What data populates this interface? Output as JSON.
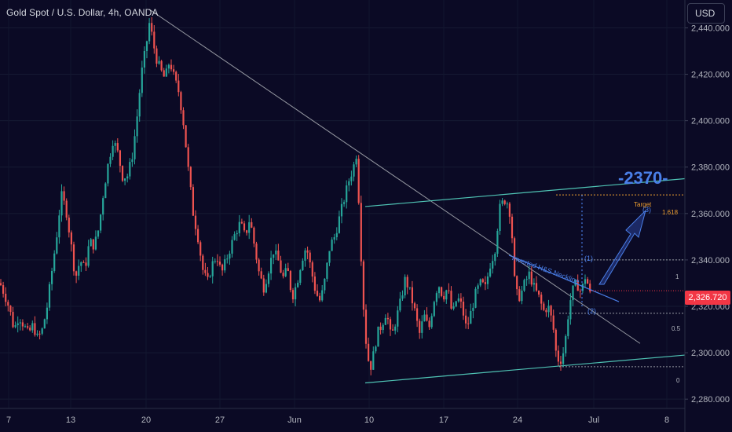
{
  "header": {
    "title": "Gold Spot / U.S. Dollar, 4h, OANDA",
    "currency": "USD"
  },
  "annotations": {
    "target_big": "-2370-",
    "target_label": "Target",
    "fib_1618": "1.618",
    "fib_1": "1",
    "fib_05": "0.5",
    "fib_0": "0",
    "wave1": "(1)",
    "wave2": "(2)",
    "wave3": "(3)",
    "neckline": "Inverted H&S Neckline"
  },
  "colors": {
    "background": "#0b0a25",
    "up": "#26a69a",
    "down": "#ef5350",
    "channel": "#4fc3b4",
    "trendline": "#9598a1",
    "annotation_blue": "#4a7fe8",
    "current_price": "#f23645",
    "target_orange": "#f0a030"
  },
  "chart_data": {
    "type": "candlestick",
    "title": "Gold Spot / U.S. Dollar, 4h, OANDA",
    "currency": "USD",
    "ylim": [
      2276,
      2452
    ],
    "y_ticks": [
      "2,440.000",
      "2,420.000",
      "2,400.000",
      "2,380.000",
      "2,360.000",
      "2,340.000",
      "2,320.000",
      "2,300.000",
      "2,280.000"
    ],
    "y_tick_values": [
      2440,
      2420,
      2400,
      2380,
      2360,
      2340,
      2320,
      2300,
      2280
    ],
    "x_ticks": [
      "7",
      "13",
      "20",
      "27",
      "Jun",
      "10",
      "17",
      "24",
      "Jul",
      "8"
    ],
    "current_price": "2,326.720",
    "current_value": 2326.72,
    "target": 2370,
    "price_path": [
      [
        0,
        2330
      ],
      [
        6,
        2325
      ],
      [
        12,
        2319
      ],
      [
        18,
        2310
      ],
      [
        24,
        2316
      ],
      [
        30,
        2312
      ],
      [
        36,
        2308
      ],
      [
        42,
        2312
      ],
      [
        48,
        2306
      ],
      [
        54,
        2310
      ],
      [
        60,
        2320
      ],
      [
        66,
        2335
      ],
      [
        72,
        2350
      ],
      [
        78,
        2368
      ],
      [
        84,
        2362
      ],
      [
        90,
        2348
      ],
      [
        96,
        2332
      ],
      [
        102,
        2340
      ],
      [
        108,
        2336
      ],
      [
        114,
        2348
      ],
      [
        120,
        2346
      ],
      [
        126,
        2354
      ],
      [
        132,
        2370
      ],
      [
        138,
        2382
      ],
      [
        144,
        2392
      ],
      [
        150,
        2386
      ],
      [
        156,
        2376
      ],
      [
        162,
        2376
      ],
      [
        168,
        2384
      ],
      [
        174,
        2400
      ],
      [
        180,
        2420
      ],
      [
        186,
        2432
      ],
      [
        190,
        2442
      ],
      [
        194,
        2436
      ],
      [
        198,
        2428
      ],
      [
        204,
        2422
      ],
      [
        210,
        2418
      ],
      [
        216,
        2426
      ],
      [
        222,
        2418
      ],
      [
        228,
        2412
      ],
      [
        234,
        2398
      ],
      [
        240,
        2378
      ],
      [
        246,
        2360
      ],
      [
        252,
        2350
      ],
      [
        258,
        2336
      ],
      [
        264,
        2330
      ],
      [
        270,
        2338
      ],
      [
        276,
        2342
      ],
      [
        282,
        2334
      ],
      [
        288,
        2340
      ],
      [
        294,
        2346
      ],
      [
        300,
        2352
      ],
      [
        306,
        2356
      ],
      [
        312,
        2350
      ],
      [
        318,
        2358
      ],
      [
        324,
        2346
      ],
      [
        330,
        2334
      ],
      [
        336,
        2328
      ],
      [
        342,
        2336
      ],
      [
        348,
        2344
      ],
      [
        354,
        2340
      ],
      [
        360,
        2332
      ],
      [
        366,
        2336
      ],
      [
        372,
        2324
      ],
      [
        378,
        2330
      ],
      [
        384,
        2340
      ],
      [
        390,
        2346
      ],
      [
        396,
        2336
      ],
      [
        402,
        2326
      ],
      [
        408,
        2322
      ],
      [
        414,
        2332
      ],
      [
        420,
        2346
      ],
      [
        426,
        2350
      ],
      [
        432,
        2358
      ],
      [
        438,
        2366
      ],
      [
        444,
        2374
      ],
      [
        450,
        2380
      ],
      [
        454,
        2386
      ],
      [
        456,
        2372
      ],
      [
        460,
        2340
      ],
      [
        464,
        2312
      ],
      [
        468,
        2298
      ],
      [
        472,
        2294
      ],
      [
        476,
        2300
      ],
      [
        480,
        2308
      ],
      [
        486,
        2312
      ],
      [
        492,
        2318
      ],
      [
        498,
        2306
      ],
      [
        504,
        2314
      ],
      [
        510,
        2322
      ],
      [
        516,
        2332
      ],
      [
        522,
        2326
      ],
      [
        528,
        2318
      ],
      [
        534,
        2308
      ],
      [
        540,
        2316
      ],
      [
        546,
        2310
      ],
      [
        552,
        2322
      ],
      [
        558,
        2330
      ],
      [
        564,
        2324
      ],
      [
        570,
        2328
      ],
      [
        576,
        2316
      ],
      [
        582,
        2324
      ],
      [
        588,
        2320
      ],
      [
        594,
        2310
      ],
      [
        600,
        2318
      ],
      [
        606,
        2326
      ],
      [
        612,
        2330
      ],
      [
        618,
        2328
      ],
      [
        624,
        2338
      ],
      [
        630,
        2344
      ],
      [
        636,
        2362
      ],
      [
        642,
        2366
      ],
      [
        648,
        2364
      ],
      [
        652,
        2350
      ],
      [
        656,
        2326
      ],
      [
        662,
        2324
      ],
      [
        668,
        2330
      ],
      [
        674,
        2334
      ],
      [
        680,
        2328
      ],
      [
        686,
        2324
      ],
      [
        692,
        2318
      ],
      [
        698,
        2320
      ],
      [
        704,
        2312
      ],
      [
        708,
        2300
      ],
      [
        712,
        2296
      ],
      [
        716,
        2298
      ],
      [
        720,
        2306
      ],
      [
        724,
        2318
      ],
      [
        728,
        2326
      ],
      [
        734,
        2330
      ],
      [
        740,
        2326
      ],
      [
        746,
        2334
      ],
      [
        748,
        2330
      ],
      [
        752,
        2324
      ]
    ],
    "drawings": {
      "descending_trendline": {
        "from": [
          190,
          2448
        ],
        "to": [
          815,
          2304
        ]
      },
      "channel_upper": {
        "from": [
          465,
          2363
        ],
        "to": [
          872,
          2375
        ]
      },
      "channel_lower": {
        "from": [
          465,
          2287
        ],
        "to": [
          872,
          2299
        ]
      },
      "neckline": {
        "from": [
          648,
          2342
        ],
        "to": [
          788,
          2322
        ]
      },
      "fib_levels": [
        {
          "label": "1.618",
          "value": 2368
        },
        {
          "label": "1",
          "value": 2340
        },
        {
          "label": "0.5",
          "value": 2317
        },
        {
          "label": "0",
          "value": 2294
        }
      ]
    }
  }
}
